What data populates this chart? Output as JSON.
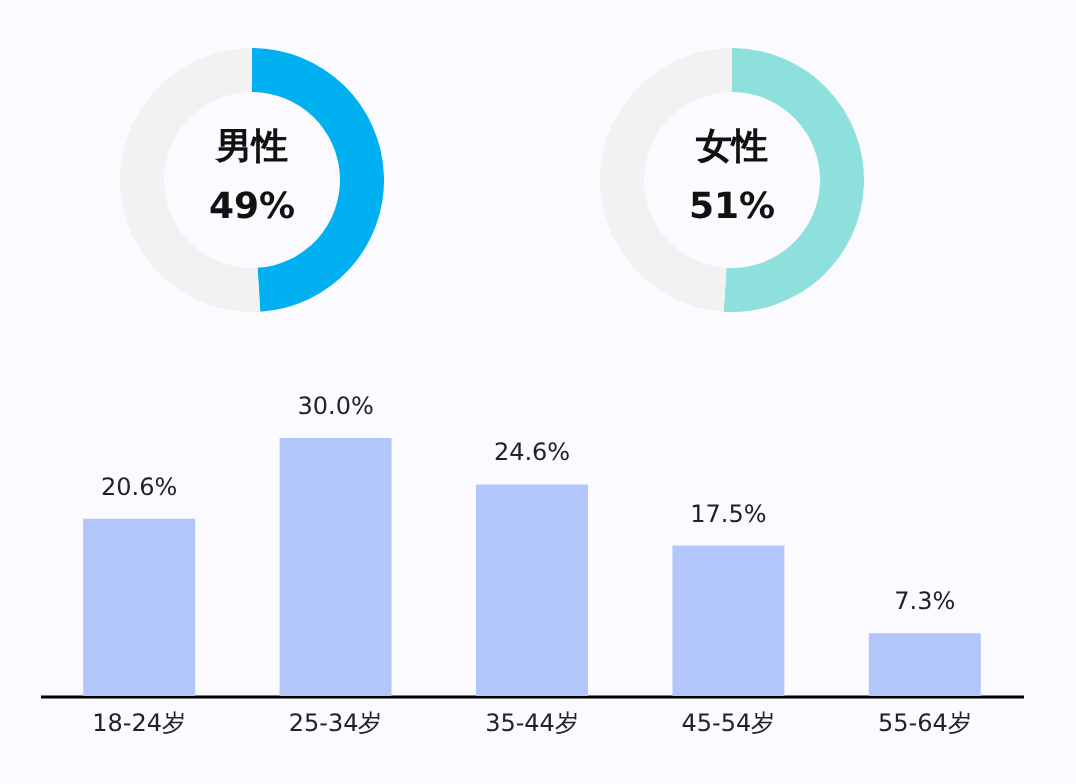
{
  "chart_data": [
    {
      "type": "donut",
      "categories": [
        "男性",
        null
      ],
      "values": [
        49,
        51
      ],
      "colors": [
        "#00b0f0",
        "#f2f2f2"
      ],
      "value_labels": [
        "49%",
        null
      ]
    },
    {
      "type": "donut",
      "categories": [
        "女性",
        null
      ],
      "values": [
        51,
        49
      ],
      "colors": [
        "#8de0dc",
        "#f2f2f2"
      ],
      "value_labels": [
        "51%",
        null
      ]
    },
    {
      "type": "bar",
      "categories": [
        "18-24岁",
        "25-34岁",
        "35-44岁",
        "45-54岁",
        "55-64岁"
      ],
      "values": [
        20.6,
        30.0,
        24.6,
        17.5,
        7.3
      ],
      "color": "#b3c6fc",
      "value_labels": [
        "20.6%",
        "30.0%",
        "24.6%",
        "17.5%",
        "7.3%"
      ]
    }
  ]
}
